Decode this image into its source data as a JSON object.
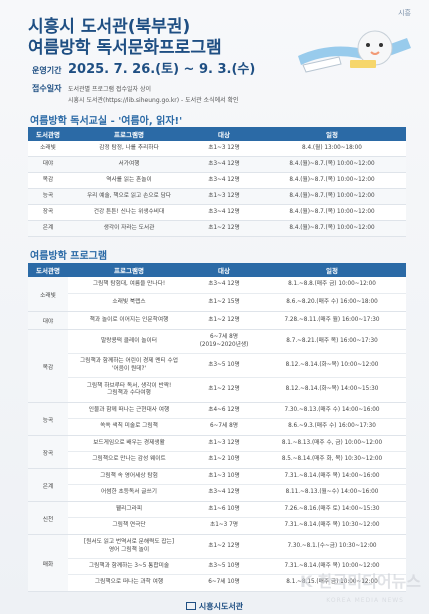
{
  "header": {
    "logo_text": "시흥",
    "title_line1": "시흥시 도서관(북부권)",
    "title_line2": "여름방학 독서문화프로그램",
    "period_label": "운영기간",
    "period_value": "2025. 7. 26.(토) ~ 9. 3.(수)",
    "registration_label": "접수일자",
    "registration_text": "도서관별 프로그램 접수일자 상이",
    "registration_detail": "시흥시 도서관(https://lib.siheung.go.kr) - 도서관 소식에서 확인"
  },
  "section1": {
    "title": "여름방학 독서교실 - '여름아, 읽자!'",
    "headers": [
      "도서관명",
      "프로그램명",
      "대상",
      "일정"
    ],
    "rows": [
      {
        "branch": "소래빛",
        "program": "감정 탐정, 나를 추리하다",
        "target": "초1~3 12명",
        "schedule": "8.4.(월) 13:00~18:00"
      },
      {
        "branch": "대야",
        "program": "서가여행",
        "target": "초3~4 12명",
        "schedule": "8.4.(월)~8.7.(목) 10:00~12:00"
      },
      {
        "branch": "목감",
        "program": "역사를 읽는 혼놀이",
        "target": "초3~4 12명",
        "schedule": "8.4.(월)~8.7.(목) 10:00~12:00"
      },
      {
        "branch": "능곡",
        "program": "우리 예술, 책으로 읽고 손으로 담다",
        "target": "초1~3 12명",
        "schedule": "8.4.(월)~8.7.(목) 10:00~12:00"
      },
      {
        "branch": "장곡",
        "program": "건강 튼튼! 신나는 위생수비대",
        "target": "초3~4 12명",
        "schedule": "8.4.(월)~8.7.(목) 10:00~12:00"
      },
      {
        "branch": "은계",
        "program": "생각이 자라는 도서관",
        "target": "초1~2 12명",
        "schedule": "8.4.(월)~8.7.(목) 10:00~12:00"
      }
    ]
  },
  "section2": {
    "title": "여름방학 프로그램",
    "headers": [
      "도서관명",
      "프로그램명",
      "대상",
      "일정"
    ],
    "groups": [
      {
        "branch": "소래빛",
        "rows": [
          {
            "program": "그림책 탐험대, 여름을 만나다!",
            "target": "초3~4 12명",
            "schedule": "8.1.~8.8.(매주 금) 10:00~12:00"
          },
          {
            "program": "소래빛 북랩스",
            "target": "초1~2 15명",
            "schedule": "8.6.~8.20.(매주 수) 16:00~18:00"
          }
        ]
      },
      {
        "branch": "대야",
        "rows": [
          {
            "program": "책과 놀이로 이어지는 인문학여행",
            "target": "초1~2 12명",
            "schedule": "7.28.~8.11.(매주 월) 16:00~17:30"
          }
        ]
      },
      {
        "branch": "목감",
        "rows": [
          {
            "program": "말랑콩떡 클레이 놀이터",
            "target": "6~7세 8명\n(2019~2020년생)",
            "schedule": "8.7.~8.21.(매주 목) 16:00~17:30"
          },
          {
            "program": "그림책과 함께하는 어린이 경제 멘티 수업\n'어음이 뭔데?'",
            "target": "초3~5 10명",
            "schedule": "8.12.~8.14.(화~목) 10:00~12:00"
          },
          {
            "program": "그림책 하브루타 독서, 생각이 반짝!\n그림책과 수다여행",
            "target": "초1~2 12명",
            "schedule": "8.12.~8.14.(화~목) 14:00~15:30"
          }
        ]
      },
      {
        "branch": "능곡",
        "rows": [
          {
            "program": "인물과 함께 떠나는 근현대사 여행",
            "target": "초4~6 12명",
            "schedule": "7.30.~8.13.(매주 수) 14:00~16:00"
          },
          {
            "program": "쏙쏙 색칙 미술로 그림책",
            "target": "6~7세 8명",
            "schedule": "8.6.~9.3.(매주 수) 16:00~17:30"
          }
        ]
      },
      {
        "branch": "장곡",
        "rows": [
          {
            "program": "보드게임으로 배우는 경제생활",
            "target": "초1~3 12명",
            "schedule": "8.1.~8.13.(매주 수, 금) 10:00~12:00"
          },
          {
            "program": "그림책으로 만나는 감성 웨이트",
            "target": "초1~2 10명",
            "schedule": "8.5.~8.14.(매주 화, 목) 10:30~12:00"
          }
        ]
      },
      {
        "branch": "은계",
        "rows": [
          {
            "program": "그림책 속 영어세상 탐험",
            "target": "초1~3 10명",
            "schedule": "7.31.~8.14.(매주 목) 14:00~16:00"
          },
          {
            "program": "어썸한 초등독서 글쓰기",
            "target": "초3~4 12명",
            "schedule": "8.11.~8.13.(월~수) 14:00~16:00"
          }
        ]
      },
      {
        "branch": "신천",
        "rows": [
          {
            "program": "웰리그라피",
            "target": "초1~6 10명",
            "schedule": "7.26.~8.16.(매주 토) 14:00~15:30"
          },
          {
            "program": "그림책 연극단",
            "target": "초1~3 7명",
            "schedule": "7.31.~8.14.(매주 목) 10:30~12:00"
          }
        ]
      },
      {
        "branch": "매화",
        "rows": [
          {
            "program": "[원서도 읽고 번역서로 문해력도 잡는]\n영어 그림책 놀이",
            "target": "초1~2 12명",
            "schedule": "7.30.~8.1.(수~금) 10:30~12:00"
          },
          {
            "program": "그림책과 함께하는 3~5 통합미술",
            "target": "초3~5 10명",
            "schedule": "7.31.~8.14.(매주 목) 10:00~12:00"
          },
          {
            "program": "그림책으로 떠나는 과학 여행",
            "target": "6~7세 10명",
            "schedule": "8.1.~8.15.(매주 금) 10:00~12:00"
          }
        ]
      }
    ]
  },
  "footer": {
    "text": "시흥시도서관"
  },
  "watermark": {
    "text": "K 한국미디어뉴스",
    "sub": "KOREA MEDIA NEWS"
  },
  "colors": {
    "primary": "#1f4f83",
    "accent": "#2b6aa6"
  }
}
